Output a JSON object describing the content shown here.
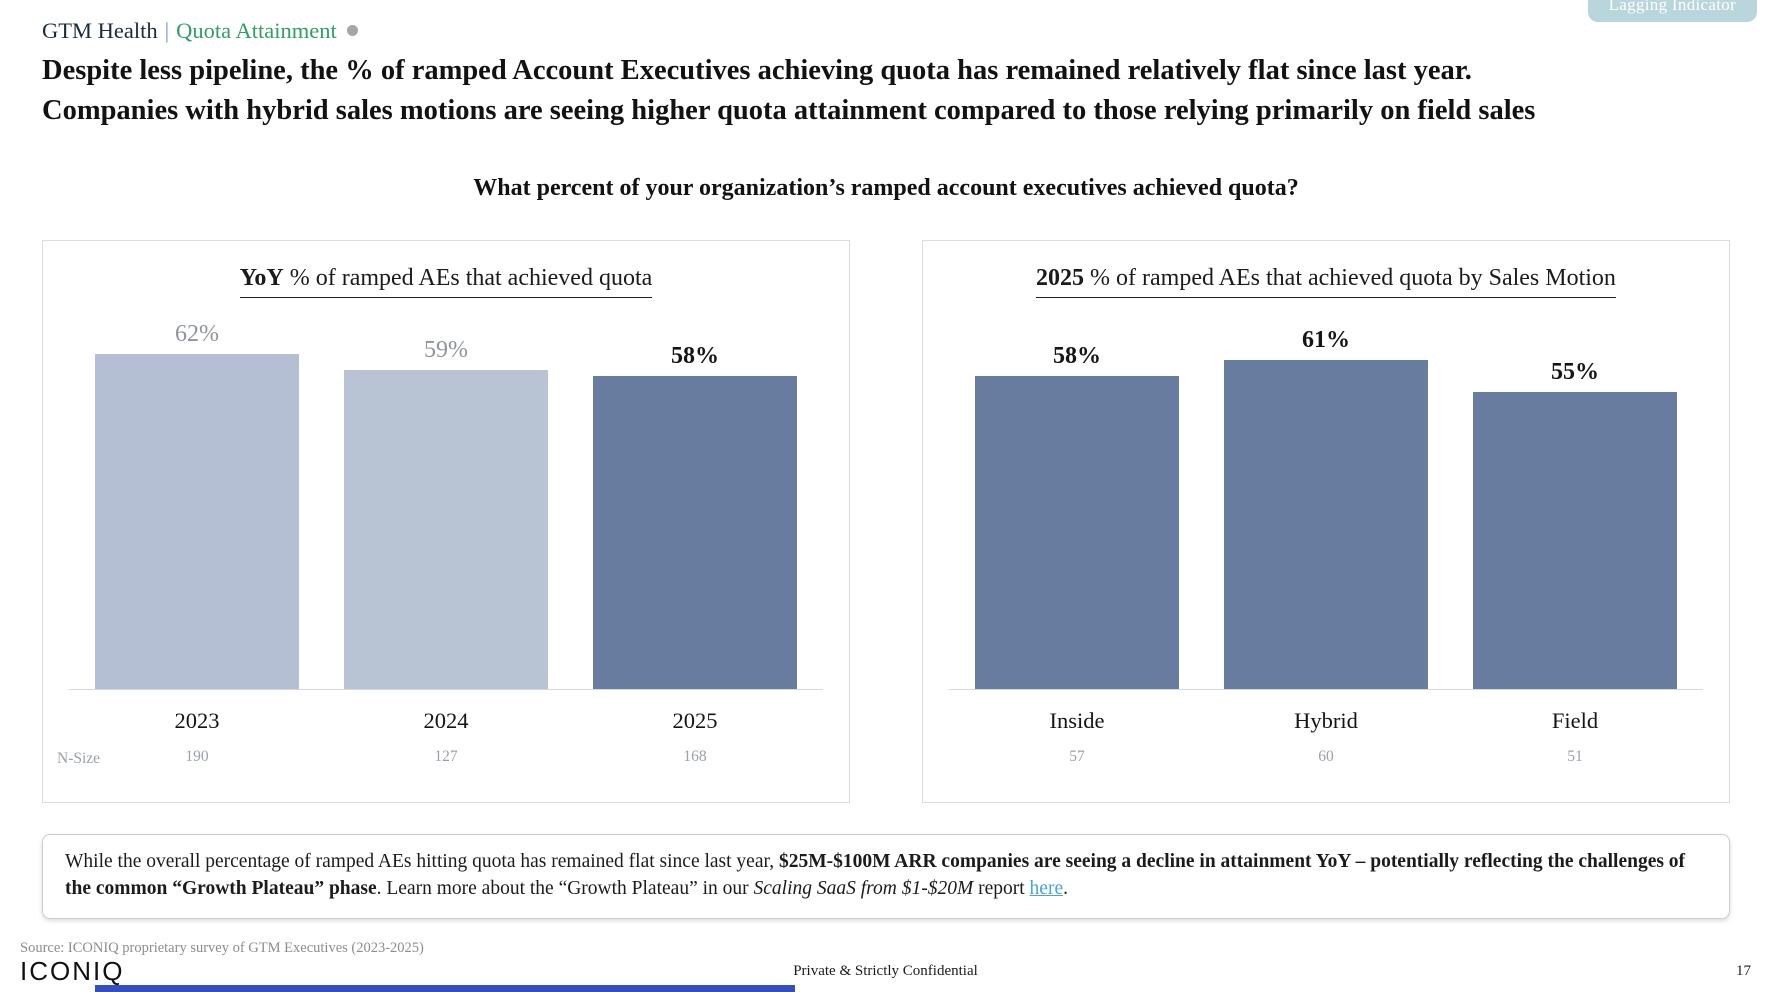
{
  "badge": {
    "label": "Lagging Indicator",
    "bg": "#b9d6dc",
    "text_color": "#ffffff"
  },
  "header": {
    "breadcrumb_primary": "GTM Health",
    "separator": "|",
    "breadcrumb_secondary": "Quota Attainment",
    "secondary_color": "#2f9e68",
    "dot_color": "#a6a6a6"
  },
  "headline": {
    "line1": "Despite less pipeline, the % of ramped Account Executives achieving quota has remained relatively flat since last year.",
    "line2": "Companies with hybrid sales motions are seeing higher quota attainment compared to those relying primarily on field sales"
  },
  "question": "What percent of your organization’s ramped account executives achieved quota?",
  "chart_data": [
    {
      "type": "bar",
      "title_prefix": "YoY",
      "title_rest": " % of ramped AEs that achieved quota",
      "categories": [
        "2023",
        "2024",
        "2025"
      ],
      "values": [
        62,
        59,
        58
      ],
      "value_suffix": "%",
      "n_size_label": "N-Size",
      "n_sizes": [
        190,
        127,
        168
      ],
      "bar_colors": [
        "#b4bfd3",
        "#b8c3d4",
        "#687ca0"
      ],
      "label_colors": [
        "#8f949c",
        "#8f949c",
        "#151515"
      ],
      "label_bold": [
        false,
        false,
        true
      ],
      "ylim": [
        0,
        70
      ],
      "grid": false,
      "legend": "none"
    },
    {
      "type": "bar",
      "title_prefix": "2025",
      "title_rest": " % of ramped AEs that achieved quota by Sales Motion",
      "categories": [
        "Inside",
        "Hybrid",
        "Field"
      ],
      "values": [
        58,
        61,
        55
      ],
      "value_suffix": "%",
      "n_sizes": [
        57,
        60,
        51
      ],
      "bar_colors": [
        "#687ca0",
        "#687ca0",
        "#687ca0"
      ],
      "label_colors": [
        "#151515",
        "#151515",
        "#151515"
      ],
      "label_bold": [
        true,
        true,
        true
      ],
      "ylim": [
        0,
        70
      ],
      "grid": false,
      "legend": "none"
    }
  ],
  "callout": {
    "text_normal_1": "While the overall percentage of ramped AEs hitting quota has remained flat since last year, ",
    "text_bold": "$25M-$100M ARR companies are seeing a decline in attainment YoY – potentially reflecting the challenges of the common “Growth Plateau” phase",
    "text_normal_2": ". Learn more about the “Growth Plateau” in our ",
    "text_italic": "Scaling SaaS from $1-$20M",
    "text_normal_3": " report ",
    "link_label": "here",
    "text_end": "."
  },
  "footer": {
    "source": "Source: ICONIQ proprietary survey of GTM Executives (2023-2025)",
    "logo": "ICONIQ",
    "confidentiality": "Private & Strictly Confidential",
    "page_number": "17"
  }
}
